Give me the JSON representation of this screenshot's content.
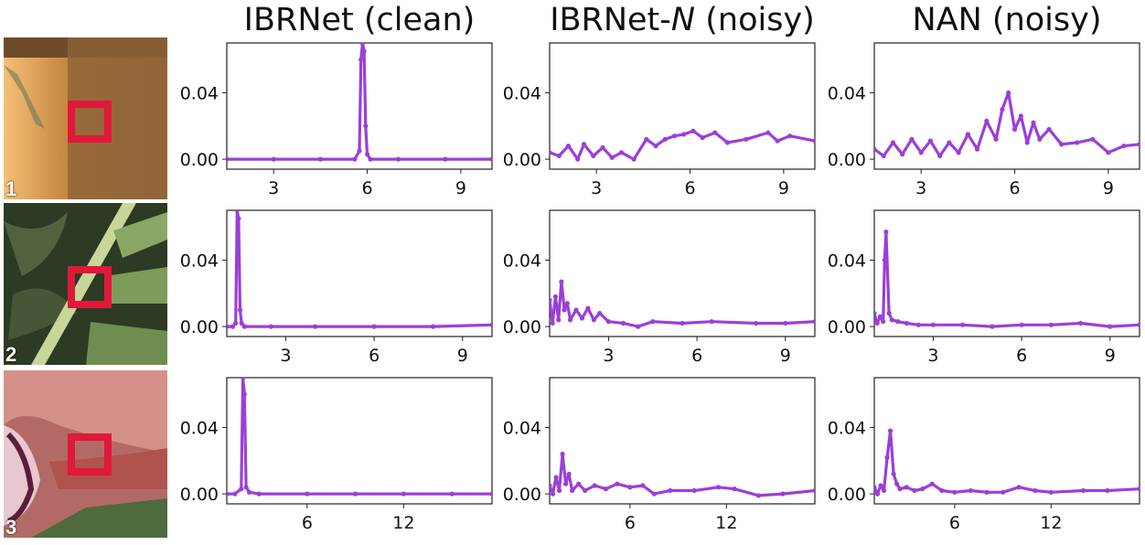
{
  "columns": {
    "col1": {
      "main": "IBRNet (clean)",
      "italic": "",
      "rest": ""
    },
    "col2": {
      "main": "IBRNet-",
      "italic": "N",
      "rest": " (noisy)"
    },
    "col3": {
      "main": "NAN (noisy)",
      "italic": "",
      "rest": ""
    }
  },
  "rows": [
    {
      "label": "1"
    },
    {
      "label": "2"
    },
    {
      "label": "3"
    }
  ],
  "colors": {
    "line": "#9b3fd6",
    "marker_box": "#e0183a"
  },
  "chart_data": [
    {
      "type": "line",
      "row": 1,
      "column": "IBRNet (clean)",
      "xlim": [
        1.5,
        10
      ],
      "ylim": [
        -0.006,
        0.07
      ],
      "xticks": [
        3,
        6,
        9
      ],
      "yticks": [
        0.0,
        0.04
      ],
      "ytick_labels": [
        "0.00",
        "0.04"
      ],
      "x": [
        1.5,
        3,
        4.5,
        5.6,
        5.75,
        5.8,
        5.85,
        5.9,
        5.95,
        6.0,
        6.1,
        7,
        8.5,
        10
      ],
      "y": [
        0,
        0,
        0,
        0,
        0.005,
        0.06,
        0.07,
        0.065,
        0.02,
        0.003,
        0,
        0,
        0,
        0
      ]
    },
    {
      "type": "line",
      "row": 1,
      "column": "IBRNet-N (noisy)",
      "xlim": [
        1.5,
        10
      ],
      "ylim": [
        -0.006,
        0.07
      ],
      "xticks": [
        3,
        6,
        9
      ],
      "yticks": [
        0.0,
        0.04
      ],
      "ytick_labels": [
        "0.00",
        "0.04"
      ],
      "x": [
        1.5,
        1.8,
        2.1,
        2.4,
        2.6,
        2.9,
        3.2,
        3.5,
        3.8,
        4.2,
        4.6,
        4.9,
        5.2,
        5.5,
        5.8,
        6.1,
        6.4,
        6.8,
        7.2,
        7.8,
        8.5,
        8.8,
        9.2,
        10
      ],
      "y": [
        0.004,
        0.002,
        0.008,
        0.0,
        0.009,
        0.002,
        0.007,
        0.001,
        0.004,
        0.0,
        0.012,
        0.008,
        0.012,
        0.014,
        0.015,
        0.017,
        0.013,
        0.016,
        0.01,
        0.012,
        0.016,
        0.011,
        0.014,
        0.011
      ]
    },
    {
      "type": "line",
      "row": 1,
      "column": "NAN (noisy)",
      "xlim": [
        1.5,
        10
      ],
      "ylim": [
        -0.006,
        0.07
      ],
      "xticks": [
        3,
        6,
        9
      ],
      "yticks": [
        0.0,
        0.04
      ],
      "ytick_labels": [
        "0.00",
        "0.04"
      ],
      "x": [
        1.5,
        1.8,
        2.1,
        2.4,
        2.7,
        3.0,
        3.3,
        3.6,
        3.9,
        4.2,
        4.5,
        4.8,
        5.1,
        5.4,
        5.6,
        5.8,
        6.0,
        6.2,
        6.4,
        6.6,
        6.8,
        7.1,
        7.5,
        8.0,
        8.5,
        9.0,
        9.5,
        10
      ],
      "y": [
        0.006,
        0.002,
        0.01,
        0.003,
        0.012,
        0.004,
        0.011,
        0.002,
        0.01,
        0.004,
        0.015,
        0.006,
        0.023,
        0.012,
        0.03,
        0.04,
        0.018,
        0.026,
        0.01,
        0.022,
        0.012,
        0.018,
        0.009,
        0.01,
        0.012,
        0.004,
        0.008,
        0.009
      ]
    },
    {
      "type": "line",
      "row": 2,
      "column": "IBRNet (clean)",
      "xlim": [
        1.0,
        10
      ],
      "ylim": [
        -0.006,
        0.07
      ],
      "xticks": [
        3,
        6,
        9
      ],
      "yticks": [
        0.0,
        0.04
      ],
      "ytick_labels": [
        "0.00",
        "0.04"
      ],
      "x": [
        1.0,
        1.2,
        1.3,
        1.35,
        1.4,
        1.45,
        1.5,
        1.6,
        2.5,
        4,
        6,
        8,
        10
      ],
      "y": [
        0.0,
        0.0,
        0.002,
        0.07,
        0.065,
        0.01,
        0.002,
        0.0,
        0.0,
        0.0,
        0.0,
        0.0,
        0.001
      ]
    },
    {
      "type": "line",
      "row": 2,
      "column": "IBRNet-N (noisy)",
      "xlim": [
        1.0,
        10
      ],
      "ylim": [
        -0.006,
        0.07
      ],
      "xticks": [
        3,
        6,
        9
      ],
      "yticks": [
        0.0,
        0.04
      ],
      "ytick_labels": [
        "0.00",
        "0.04"
      ],
      "x": [
        1.0,
        1.1,
        1.2,
        1.3,
        1.4,
        1.5,
        1.6,
        1.7,
        1.9,
        2.1,
        2.3,
        2.5,
        2.7,
        3.0,
        3.5,
        4.0,
        4.5,
        5.5,
        6.5,
        8.0,
        9.0,
        10
      ],
      "y": [
        0.016,
        0.002,
        0.018,
        0.004,
        0.027,
        0.01,
        0.014,
        0.004,
        0.01,
        0.005,
        0.011,
        0.004,
        0.008,
        0.003,
        0.002,
        0.0,
        0.003,
        0.002,
        0.003,
        0.002,
        0.002,
        0.003
      ]
    },
    {
      "type": "line",
      "row": 2,
      "column": "NAN (noisy)",
      "xlim": [
        1.0,
        10
      ],
      "ylim": [
        -0.006,
        0.07
      ],
      "xticks": [
        3,
        6,
        9
      ],
      "yticks": [
        0.0,
        0.04
      ],
      "ytick_labels": [
        "0.00",
        "0.04"
      ],
      "x": [
        1.0,
        1.1,
        1.2,
        1.3,
        1.35,
        1.4,
        1.5,
        1.6,
        1.8,
        2.1,
        2.5,
        3.0,
        4.0,
        5.0,
        6.0,
        7.0,
        8.0,
        9.0,
        10
      ],
      "y": [
        0.008,
        0.002,
        0.006,
        0.003,
        0.04,
        0.057,
        0.008,
        0.004,
        0.003,
        0.002,
        0.001,
        0.001,
        0.001,
        0.0,
        0.001,
        0.001,
        0.002,
        0.0,
        0.001
      ]
    },
    {
      "type": "line",
      "row": 3,
      "column": "IBRNet (clean)",
      "xlim": [
        1.0,
        17.5
      ],
      "ylim": [
        -0.006,
        0.07
      ],
      "xticks": [
        6,
        12
      ],
      "yticks": [
        0.0,
        0.04
      ],
      "ytick_labels": [
        "0.00",
        "0.04"
      ],
      "x": [
        1.0,
        1.5,
        1.9,
        2.0,
        2.1,
        2.2,
        2.4,
        3,
        6,
        9,
        12,
        15,
        17.5
      ],
      "y": [
        0.0,
        0.0,
        0.003,
        0.07,
        0.06,
        0.004,
        0.001,
        0.0,
        0.0,
        0.0,
        0.0,
        0.0,
        0.0
      ]
    },
    {
      "type": "line",
      "row": 3,
      "column": "IBRNet-N (noisy)",
      "xlim": [
        1.0,
        17.5
      ],
      "ylim": [
        -0.006,
        0.07
      ],
      "xticks": [
        6,
        12
      ],
      "yticks": [
        0.0,
        0.04
      ],
      "ytick_labels": [
        "0.00",
        "0.04"
      ],
      "x": [
        1.0,
        1.2,
        1.4,
        1.6,
        1.8,
        2.0,
        2.2,
        2.4,
        2.8,
        3.2,
        3.8,
        4.5,
        5.2,
        6.0,
        6.8,
        7.5,
        8.5,
        10,
        11.5,
        12.5,
        14,
        15.5,
        17.5
      ],
      "y": [
        0.005,
        0.0,
        0.01,
        0.002,
        0.024,
        0.006,
        0.012,
        0.002,
        0.006,
        0.002,
        0.005,
        0.003,
        0.006,
        0.004,
        0.005,
        0.0,
        0.002,
        0.002,
        0.004,
        0.003,
        -0.001,
        0.0,
        0.002
      ]
    },
    {
      "type": "line",
      "row": 3,
      "column": "NAN (noisy)",
      "xlim": [
        1.0,
        17.5
      ],
      "ylim": [
        -0.006,
        0.07
      ],
      "xticks": [
        6,
        12
      ],
      "yticks": [
        0.0,
        0.04
      ],
      "ytick_labels": [
        "0.00",
        "0.04"
      ],
      "x": [
        1.0,
        1.2,
        1.4,
        1.6,
        1.8,
        2.0,
        2.2,
        2.4,
        2.6,
        3.0,
        3.5,
        4.0,
        4.6,
        5.2,
        6.0,
        7.0,
        8.0,
        9.0,
        10.0,
        11.0,
        12.0,
        14.0,
        15.5,
        17.5
      ],
      "y": [
        0.004,
        0.0,
        0.005,
        0.002,
        0.022,
        0.038,
        0.012,
        0.006,
        0.003,
        0.004,
        0.002,
        0.003,
        0.006,
        0.002,
        0.001,
        0.002,
        0.001,
        0.001,
        0.004,
        0.002,
        0.001,
        0.002,
        0.002,
        0.003
      ]
    }
  ]
}
